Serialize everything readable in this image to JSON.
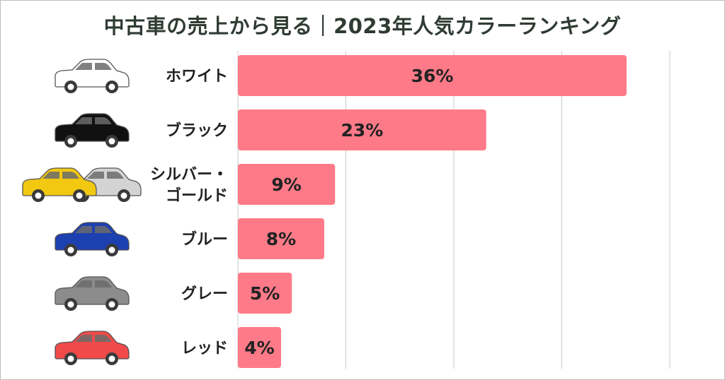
{
  "title": "中古車の売上から見る｜2023年人気カラーランキング",
  "colors": {
    "bar": "#ff7a88",
    "grid": "#c8c8c8",
    "text": "#222222",
    "title": "#2f3b33"
  },
  "chart_data": {
    "type": "bar",
    "orientation": "horizontal",
    "title": "中古車の売上から見る｜2023年人気カラーランキング",
    "categories": [
      {
        "lines": [
          "ホワイト"
        ],
        "car_icon": "white-car-icon",
        "car_colors": [
          "#ffffff"
        ]
      },
      {
        "lines": [
          "ブラック"
        ],
        "car_icon": "black-car-icon",
        "car_colors": [
          "#111111"
        ]
      },
      {
        "lines": [
          "シルバー・",
          "ゴールド"
        ],
        "car_icon": "gold-silver-cars-icon",
        "car_colors": [
          "#f2c811",
          "#d3d3d3"
        ]
      },
      {
        "lines": [
          "ブルー"
        ],
        "car_icon": "blue-car-icon",
        "car_colors": [
          "#1d40b0"
        ]
      },
      {
        "lines": [
          "グレー"
        ],
        "car_icon": "gray-car-icon",
        "car_colors": [
          "#8c8c8c"
        ]
      },
      {
        "lines": [
          "レッド"
        ],
        "car_icon": "red-car-icon",
        "car_colors": [
          "#f04a4a"
        ]
      }
    ],
    "values": [
      36,
      23,
      9,
      8,
      5,
      4
    ],
    "value_labels": [
      "36%",
      "23%",
      "9%",
      "8%",
      "5%",
      "4%"
    ],
    "xlim": [
      0,
      40
    ],
    "grid": true,
    "xlabel": "",
    "ylabel": ""
  }
}
